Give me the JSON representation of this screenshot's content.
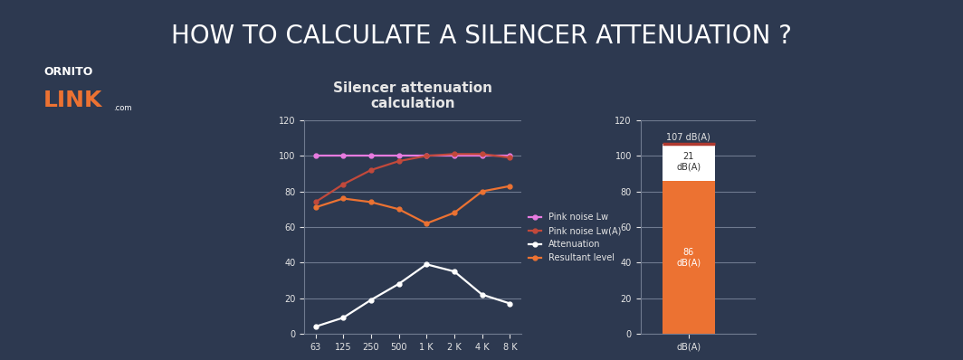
{
  "header": {
    "title": "HOW TO CALCULATE A SILENCER ATTENUATION ?",
    "logo": "ORNITO",
    "logo_accent": "LINK",
    "logo_suffix": ".com"
  },
  "chart_data": [
    {
      "type": "line",
      "title": "Silencer attenuation\ncalculation",
      "categories": [
        "63",
        "125",
        "250",
        "500",
        "1 K",
        "2 K",
        "4 K",
        "8 K"
      ],
      "series": [
        {
          "name": "Pink noise Lw",
          "color": "#e77be0",
          "values": [
            100,
            100,
            100,
            100,
            100,
            100,
            100,
            100
          ]
        },
        {
          "name": "Pink noise Lw(A)",
          "color": "#c2493b",
          "values": [
            74,
            84,
            92,
            97,
            100,
            101,
            101,
            99
          ]
        },
        {
          "name": "Attenuation",
          "color": "#ffffff",
          "values": [
            4,
            9,
            19,
            28,
            39,
            35,
            22,
            17
          ]
        },
        {
          "name": "Resultant level",
          "color": "#ec7232",
          "values": [
            71,
            76,
            74,
            70,
            62,
            68,
            80,
            83
          ]
        }
      ],
      "ylim": [
        0,
        120
      ],
      "yticks": [
        0,
        20,
        40,
        60,
        80,
        100,
        120
      ],
      "grid": true,
      "legend": "right",
      "marker": "circle"
    },
    {
      "type": "bar",
      "stacked": true,
      "categories": [
        "dB(A)"
      ],
      "series": [
        {
          "color": "#ec7232",
          "values": [
            86
          ],
          "value_labels": [
            "86\ndB(A)"
          ]
        },
        {
          "color": "#ffffff",
          "values": [
            21
          ],
          "value_labels": [
            "21\ndB(A)"
          ]
        }
      ],
      "total": 107,
      "total_label": "107 dB(A)",
      "data_labels": true,
      "ylim": [
        0,
        120
      ],
      "yticks": [
        0,
        20,
        40,
        60,
        80,
        100,
        120
      ],
      "grid": true
    }
  ]
}
